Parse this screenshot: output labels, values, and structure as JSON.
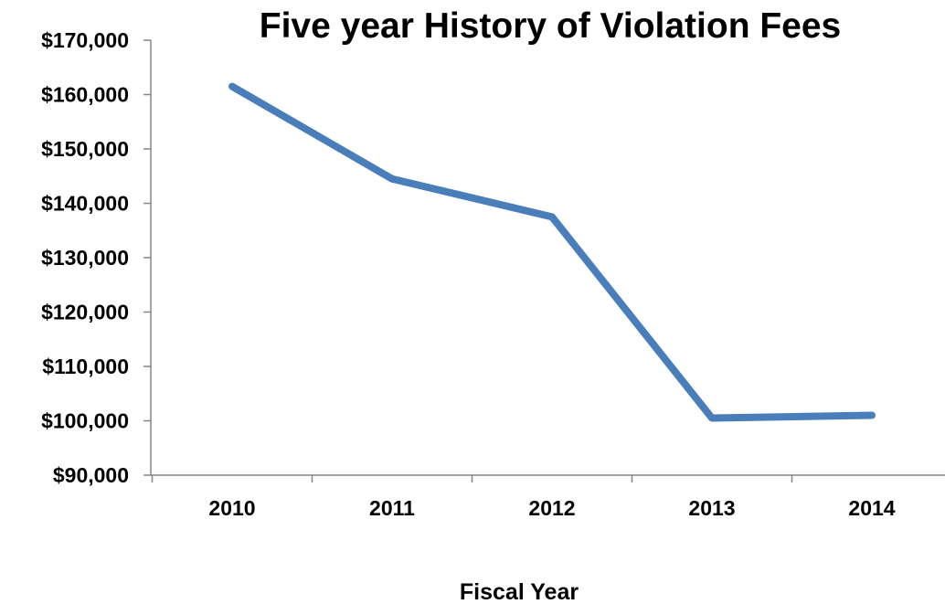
{
  "chart_data": {
    "type": "line",
    "title": "Five year History of Violation Fees",
    "xlabel": "Fiscal Year",
    "ylabel": "",
    "categories": [
      "2010",
      "2011",
      "2012",
      "2013",
      "2014"
    ],
    "series": [
      {
        "values": [
          161500,
          144500,
          137500,
          100500,
          101000
        ],
        "color": "#4a7ebb"
      }
    ],
    "ylim": [
      90000,
      170000
    ],
    "yticks": [
      90000,
      100000,
      110000,
      120000,
      130000,
      140000,
      150000,
      160000,
      170000
    ],
    "ytick_labels": [
      "$90,000",
      "$100,000",
      "$110,000",
      "$120,000",
      "$130,000",
      "$140,000",
      "$150,000",
      "$160,000",
      "$170,000"
    ],
    "grid": false,
    "legend": "none"
  }
}
